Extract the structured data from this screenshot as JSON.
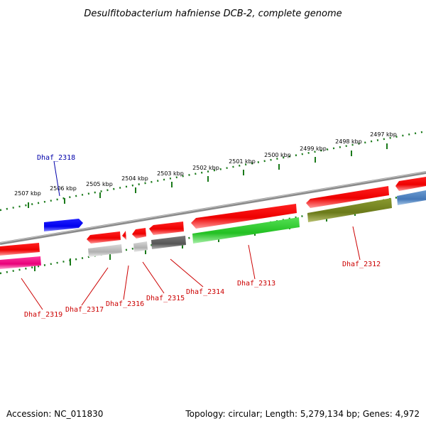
{
  "title": "Desulfitobacterium hafniense DCB-2, complete genome",
  "footer": {
    "accession": "Accession: NC_011830",
    "summary": "Topology: circular; Length: 5,279,134 bp; Genes: 4,972"
  },
  "colors": {
    "backbone": "#8a8a8a",
    "ruler": "#1a7a1a",
    "label_red": "#cc0000",
    "label_blue": "#0000aa"
  },
  "ruler_labels": [
    "2507 kbp",
    "2506 kbp",
    "2505 kbp",
    "2504 kbp",
    "2503 kbp",
    "2502 kbp",
    "2501 kbp",
    "2500 kbp",
    "2499 kbp",
    "2498 kbp",
    "2497 kbp"
  ],
  "gene_labels": [
    "Dhaf_2318",
    "Dhaf_2319",
    "Dhaf_2317",
    "Dhaf_2316",
    "Dhaf_2315",
    "Dhaf_2314",
    "Dhaf_2313",
    "Dhaf_2312"
  ]
}
